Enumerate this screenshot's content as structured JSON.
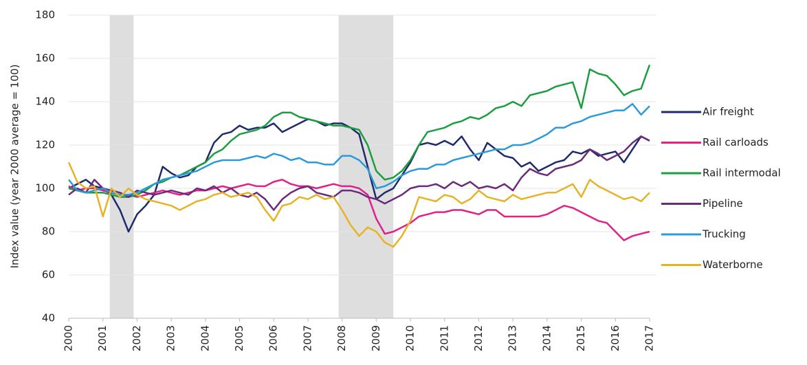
{
  "chart_data": {
    "type": "line",
    "ylabel": "Index value (year 2000 average = 100)",
    "xlim": [
      2000,
      2017
    ],
    "xticks": [
      2000,
      2001,
      2002,
      2003,
      2004,
      2005,
      2006,
      2007,
      2008,
      2009,
      2010,
      2011,
      2012,
      2013,
      2014,
      2015,
      2016,
      2017
    ],
    "ylim": [
      40,
      180
    ],
    "yticks": [
      40,
      60,
      80,
      100,
      120,
      140,
      160,
      180
    ],
    "grid": true,
    "legend": "right",
    "shaded_periods": [
      [
        2001.2,
        2001.9
      ],
      [
        2007.9,
        2009.5
      ]
    ],
    "shade_color": "#dedede",
    "x": [
      2000,
      2000.25,
      2000.5,
      2000.75,
      2001,
      2001.25,
      2001.5,
      2001.75,
      2002,
      2002.25,
      2002.5,
      2002.75,
      2003,
      2003.25,
      2003.5,
      2003.75,
      2004,
      2004.25,
      2004.5,
      2004.75,
      2005,
      2005.25,
      2005.5,
      2005.75,
      2006,
      2006.25,
      2006.5,
      2006.75,
      2007,
      2007.25,
      2007.5,
      2007.75,
      2008,
      2008.25,
      2008.5,
      2008.75,
      2009,
      2009.25,
      2009.5,
      2009.75,
      2010,
      2010.25,
      2010.5,
      2010.75,
      2011,
      2011.25,
      2011.5,
      2011.75,
      2012,
      2012.25,
      2012.5,
      2012.75,
      2013,
      2013.25,
      2013.5,
      2013.75,
      2014,
      2014.25,
      2014.5,
      2014.75,
      2015,
      2015.25,
      2015.5,
      2015.75,
      2016,
      2016.25,
      2016.5,
      2016.75,
      2017
    ],
    "series": [
      {
        "name": "Air freight",
        "color": "#1f2a6b",
        "values": [
          100,
          102,
          104,
          101,
          100,
          97,
          90,
          80,
          88,
          92,
          97,
          110,
          107,
          105,
          106,
          110,
          112,
          121,
          125,
          126,
          129,
          127,
          128,
          128,
          130,
          126,
          128,
          130,
          132,
          131,
          129,
          130,
          130,
          128,
          125,
          110,
          95,
          98,
          100,
          106,
          112,
          120,
          121,
          120,
          122,
          120,
          124,
          118,
          113,
          121,
          118,
          115,
          114,
          110,
          112,
          108,
          110,
          112,
          113,
          117,
          116,
          118,
          115,
          116,
          117,
          112,
          118,
          124,
          122
        ]
      },
      {
        "name": "Rail carloads",
        "color": "#e0218a",
        "values": [
          101,
          99,
          100,
          100,
          99,
          98,
          97,
          97,
          96,
          97,
          98,
          99,
          98,
          97,
          98,
          99,
          99,
          100,
          101,
          100,
          101,
          102,
          101,
          101,
          103,
          104,
          102,
          101,
          101,
          100,
          101,
          102,
          101,
          101,
          100,
          97,
          86,
          79,
          80,
          82,
          84,
          87,
          88,
          89,
          89,
          90,
          90,
          89,
          88,
          90,
          90,
          87,
          87,
          87,
          87,
          87,
          88,
          90,
          92,
          91,
          89,
          87,
          85,
          84,
          80,
          76,
          78,
          79,
          80
        ]
      },
      {
        "name": "Rail intermodal",
        "color": "#1a9e3f",
        "values": [
          100,
          99,
          98,
          98,
          98,
          97,
          96,
          96,
          97,
          99,
          102,
          103,
          105,
          106,
          108,
          110,
          112,
          116,
          118,
          122,
          125,
          126,
          127,
          129,
          133,
          135,
          135,
          133,
          132,
          131,
          130,
          129,
          129,
          128,
          127,
          120,
          108,
          104,
          105,
          108,
          113,
          120,
          126,
          127,
          128,
          130,
          131,
          133,
          132,
          134,
          137,
          138,
          140,
          138,
          143,
          144,
          145,
          147,
          148,
          149,
          137,
          155,
          153,
          152,
          148,
          143,
          145,
          146,
          157
        ]
      },
      {
        "name": "Pipeline",
        "color": "#6b2a7a",
        "values": [
          97,
          100,
          98,
          104,
          100,
          99,
          98,
          96,
          99,
          98,
          97,
          98,
          99,
          98,
          97,
          100,
          99,
          101,
          98,
          100,
          97,
          96,
          98,
          95,
          90,
          95,
          98,
          100,
          101,
          98,
          97,
          96,
          99,
          99,
          98,
          96,
          95,
          93,
          95,
          97,
          100,
          101,
          101,
          102,
          100,
          103,
          101,
          103,
          100,
          101,
          100,
          102,
          99,
          105,
          109,
          107,
          106,
          109,
          110,
          111,
          113,
          118,
          116,
          113,
          115,
          117,
          121,
          124,
          122
        ]
      },
      {
        "name": "Trucking",
        "color": "#2b9ad8",
        "values": [
          104,
          99,
          98,
          99,
          100,
          98,
          97,
          97,
          98,
          100,
          102,
          104,
          105,
          106,
          107,
          108,
          110,
          112,
          113,
          113,
          113,
          114,
          115,
          114,
          116,
          115,
          113,
          114,
          112,
          112,
          111,
          111,
          115,
          115,
          113,
          109,
          100,
          101,
          103,
          106,
          108,
          109,
          109,
          111,
          111,
          113,
          114,
          115,
          116,
          117,
          118,
          118,
          120,
          120,
          121,
          123,
          125,
          128,
          128,
          130,
          131,
          133,
          134,
          135,
          136,
          136,
          139,
          134,
          138
        ]
      },
      {
        "name": "Waterborne",
        "color": "#e6b325",
        "values": [
          112,
          103,
          100,
          101,
          87,
          100,
          96,
          100,
          97,
          95,
          94,
          93,
          92,
          90,
          92,
          94,
          95,
          97,
          98,
          96,
          97,
          98,
          96,
          90,
          85,
          92,
          93,
          96,
          95,
          97,
          95,
          96,
          90,
          83,
          78,
          82,
          80,
          75,
          73,
          78,
          85,
          96,
          95,
          94,
          97,
          96,
          93,
          95,
          99,
          96,
          95,
          94,
          97,
          95,
          96,
          97,
          98,
          98,
          100,
          102,
          96,
          104,
          101,
          99,
          97,
          95,
          96,
          94,
          98
        ]
      }
    ]
  }
}
